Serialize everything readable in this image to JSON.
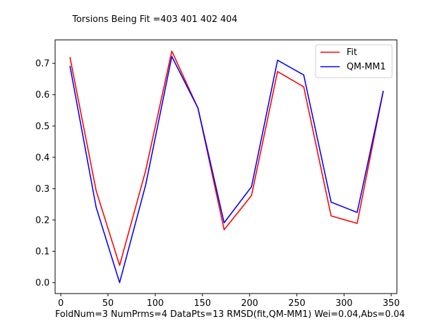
{
  "chart_data": {
    "type": "line",
    "title": "Torsions Being Fit =403 401 402 404",
    "footer": "FoldNum=3 NumPrms=4 DataPts=13 RMSD(fit,QM-MM1) Wei=0.04,Abs=0.04",
    "xlabel": "",
    "ylabel": "",
    "xlim": [
      -6,
      356
    ],
    "ylim": [
      -0.035,
      0.775
    ],
    "xticks": [
      0,
      50,
      100,
      150,
      200,
      250,
      300,
      350
    ],
    "yticks": [
      0.0,
      0.1,
      0.2,
      0.3,
      0.4,
      0.5,
      0.6,
      0.7
    ],
    "ytick_labels": [
      "0.0",
      "0.1",
      "0.2",
      "0.3",
      "0.4",
      "0.5",
      "0.6",
      "0.7"
    ],
    "grid": false,
    "legend_position": "top-right",
    "x": [
      9.7,
      37.4,
      62.3,
      89.9,
      117.6,
      145.3,
      173.0,
      202.0,
      229.6,
      257.3,
      286.3,
      313.9,
      341.6
    ],
    "series": [
      {
        "name": "Fit",
        "color": "#ff0000",
        "values": [
          0.72,
          0.294,
          0.055,
          0.358,
          0.739,
          0.557,
          0.169,
          0.278,
          0.674,
          0.625,
          0.213,
          0.189,
          0.612
        ]
      },
      {
        "name": "QM-MM1",
        "color": "#0000ff",
        "values": [
          0.692,
          0.241,
          0.0,
          0.312,
          0.722,
          0.557,
          0.191,
          0.306,
          0.71,
          0.663,
          0.257,
          0.224,
          0.612
        ]
      }
    ]
  }
}
